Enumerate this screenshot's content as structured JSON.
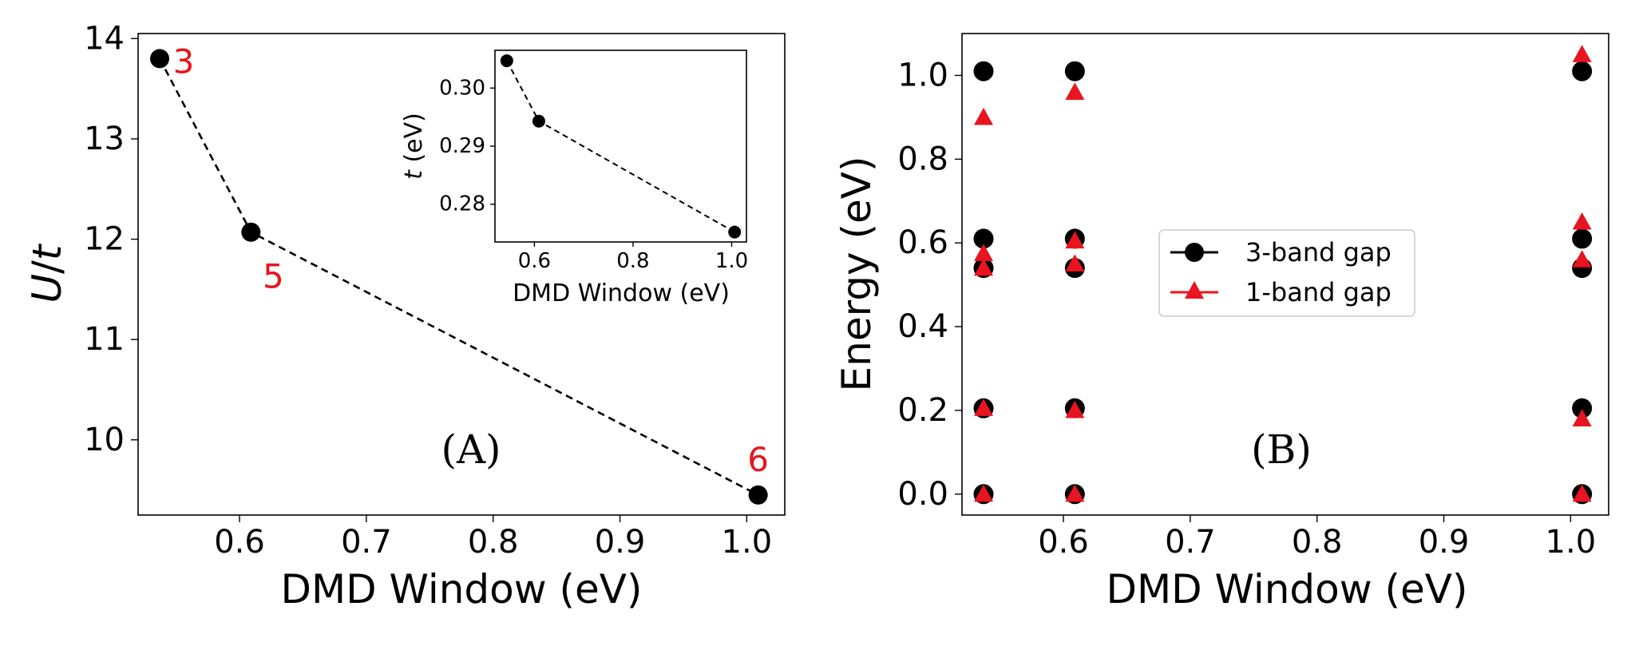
{
  "chart_data": [
    {
      "panel": "A",
      "type": "line",
      "panel_label": "(A)",
      "xlabel": "DMD Window (eV)",
      "ylabel_italic": "U",
      "ylabel_rest": "/",
      "ylabel_italic2": "t",
      "xlim": [
        0.52,
        1.03
      ],
      "ylim": [
        9.25,
        14.05
      ],
      "xticks": [
        "0.6",
        "0.7",
        "0.8",
        "0.9",
        "1.0"
      ],
      "xtick_values": [
        0.6,
        0.7,
        0.8,
        0.9,
        1.0
      ],
      "yticks": [
        "10",
        "11",
        "12",
        "13",
        "14"
      ],
      "ytick_values": [
        10,
        11,
        12,
        13,
        14
      ],
      "x": [
        0.537,
        0.609,
        1.009
      ],
      "y": [
        13.8,
        12.07,
        9.45
      ],
      "point_labels": [
        "3",
        "5",
        "6"
      ],
      "line_style": "dashed",
      "marker_color": "#000000",
      "label_color": "#e8141f",
      "inset": {
        "type": "line",
        "xlabel": "DMD Window (eV)",
        "ylabel_italic": "t",
        "ylabel_rest": " (eV)",
        "xlim": [
          0.52,
          1.03
        ],
        "ylim": [
          0.2735,
          0.3065
        ],
        "xticks": [
          "0.6",
          "0.8",
          "1.0"
        ],
        "xtick_values": [
          0.6,
          0.8,
          1.0
        ],
        "yticks": [
          "0.28",
          "0.29",
          "0.30"
        ],
        "ytick_values": [
          0.28,
          0.29,
          0.3
        ],
        "x": [
          0.544,
          0.609,
          1.006
        ],
        "y": [
          0.3047,
          0.2943,
          0.2752
        ]
      }
    },
    {
      "panel": "B",
      "type": "scatter",
      "panel_label": "(B)",
      "xlabel": "DMD Window (eV)",
      "ylabel": "Energy (eV)",
      "xlim": [
        0.52,
        1.03
      ],
      "ylim": [
        -0.05,
        1.1
      ],
      "xticks": [
        "0.6",
        "0.7",
        "0.8",
        "0.9",
        "1.0"
      ],
      "xtick_values": [
        0.6,
        0.7,
        0.8,
        0.9,
        1.0
      ],
      "yticks": [
        "0.0",
        "0.2",
        "0.4",
        "0.6",
        "0.8",
        "1.0"
      ],
      "ytick_values": [
        0.0,
        0.2,
        0.4,
        0.6,
        0.8,
        1.0
      ],
      "legend_position": "center",
      "series": [
        {
          "name": "3-band gap",
          "marker": "circle",
          "color": "#000000",
          "points": [
            [
              0.537,
              0.0
            ],
            [
              0.537,
              0.205
            ],
            [
              0.537,
              0.54
            ],
            [
              0.537,
              0.61
            ],
            [
              0.537,
              1.01
            ],
            [
              0.609,
              0.0
            ],
            [
              0.609,
              0.205
            ],
            [
              0.609,
              0.54
            ],
            [
              0.609,
              0.61
            ],
            [
              0.609,
              1.01
            ],
            [
              1.009,
              0.0
            ],
            [
              1.009,
              0.205
            ],
            [
              1.009,
              0.54
            ],
            [
              1.009,
              0.61
            ],
            [
              1.009,
              1.01
            ]
          ]
        },
        {
          "name": "1-band gap",
          "marker": "triangle",
          "color": "#e8141f",
          "points": [
            [
              0.537,
              0.0
            ],
            [
              0.537,
              0.205
            ],
            [
              0.537,
              0.54
            ],
            [
              0.537,
              0.575
            ],
            [
              0.537,
              0.9
            ],
            [
              0.609,
              0.0
            ],
            [
              0.609,
              0.2
            ],
            [
              0.609,
              0.55
            ],
            [
              0.609,
              0.605
            ],
            [
              0.609,
              0.96
            ],
            [
              1.009,
              0.0
            ],
            [
              1.009,
              0.18
            ],
            [
              1.009,
              0.56
            ],
            [
              1.009,
              0.65
            ],
            [
              1.009,
              1.05
            ]
          ]
        }
      ]
    }
  ]
}
